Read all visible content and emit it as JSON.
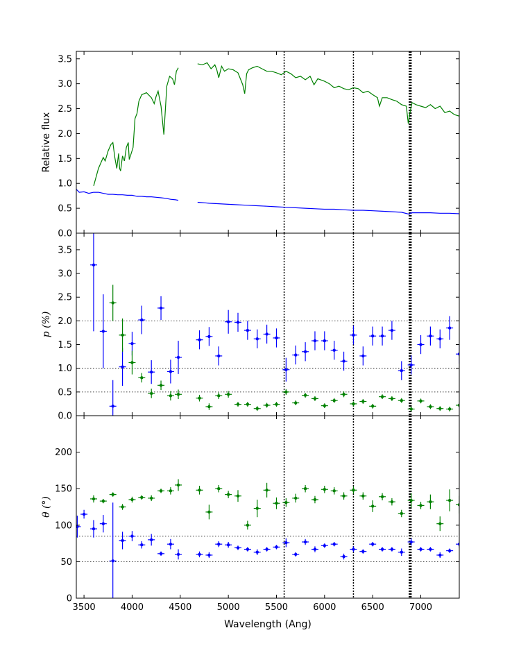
{
  "chart_data": [
    {
      "type": "line",
      "ylabel": "Relative flux",
      "ylim": [
        0,
        3.65
      ],
      "xlim": [
        3420,
        7400
      ],
      "yticks": [
        "0.0",
        "0.5",
        "1.0",
        "1.5",
        "2.0",
        "2.5",
        "3.0",
        "3.5"
      ],
      "ytick_values": [
        0,
        0.5,
        1.0,
        1.5,
        2.0,
        2.5,
        3.0,
        3.5
      ],
      "series": [
        {
          "color": "#008000",
          "x": [
            3600,
            3650,
            3700,
            3720,
            3750,
            3780,
            3800,
            3820,
            3840,
            3860,
            3870,
            3880,
            3900,
            3920,
            3940,
            3960,
            3970,
            3990,
            4010,
            4030,
            4050,
            4070,
            4100,
            4150,
            4200,
            4230,
            4250,
            4270,
            4300,
            4330,
            4360,
            4390,
            4420,
            4440,
            4460,
            4480,
            4680,
            4730,
            4780,
            4820,
            4860,
            4880,
            4900,
            4930,
            4960,
            5000,
            5050,
            5100,
            5150,
            5170,
            5190,
            5210,
            5250,
            5300,
            5350,
            5400,
            5450,
            5500,
            5550,
            5600,
            5650,
            5700,
            5750,
            5800,
            5850,
            5890,
            5930,
            6000,
            6050,
            6100,
            6150,
            6200,
            6250,
            6300,
            6350,
            6400,
            6450,
            6500,
            6550,
            6570,
            6600,
            6650,
            6700,
            6750,
            6800,
            6850,
            6870,
            6890,
            6910,
            6950,
            7000,
            7050,
            7100,
            7150,
            7200,
            7250,
            7300,
            7350,
            7400
          ],
          "y": [
            0.95,
            1.3,
            1.52,
            1.45,
            1.65,
            1.78,
            1.82,
            1.52,
            1.3,
            1.6,
            1.3,
            1.25,
            1.55,
            1.45,
            1.72,
            1.82,
            1.48,
            1.6,
            1.72,
            2.3,
            2.4,
            2.65,
            2.78,
            2.82,
            2.72,
            2.6,
            2.75,
            2.85,
            2.55,
            1.98,
            2.95,
            3.15,
            3.1,
            2.98,
            3.25,
            3.32,
            3.4,
            3.38,
            3.42,
            3.3,
            3.38,
            3.28,
            3.12,
            3.35,
            3.25,
            3.3,
            3.28,
            3.22,
            2.98,
            2.8,
            3.2,
            3.28,
            3.32,
            3.35,
            3.3,
            3.25,
            3.25,
            3.22,
            3.18,
            3.25,
            3.2,
            3.12,
            3.15,
            3.08,
            3.15,
            2.98,
            3.1,
            3.05,
            3.0,
            2.92,
            2.95,
            2.9,
            2.88,
            2.92,
            2.9,
            2.82,
            2.85,
            2.78,
            2.72,
            2.55,
            2.72,
            2.72,
            2.68,
            2.65,
            2.58,
            2.55,
            2.2,
            2.45,
            2.62,
            2.58,
            2.55,
            2.52,
            2.58,
            2.5,
            2.55,
            2.42,
            2.45,
            2.38,
            2.35
          ]
        },
        {
          "color": "#0000ff",
          "x": [
            3420,
            3450,
            3500,
            3550,
            3600,
            3650,
            3700,
            3750,
            3800,
            3850,
            3900,
            3950,
            4000,
            4050,
            4100,
            4150,
            4200,
            4250,
            4300,
            4350,
            4400,
            4450,
            4480,
            4680,
            4750,
            4800,
            4900,
            5000,
            5100,
            5200,
            5300,
            5400,
            5500,
            5600,
            5700,
            5800,
            5900,
            6000,
            6100,
            6200,
            6300,
            6400,
            6500,
            6600,
            6700,
            6800,
            6880,
            6900,
            6950,
            7000,
            7100,
            7200,
            7300,
            7400
          ],
          "y": [
            0.88,
            0.82,
            0.83,
            0.8,
            0.82,
            0.82,
            0.8,
            0.78,
            0.78,
            0.77,
            0.77,
            0.76,
            0.76,
            0.74,
            0.74,
            0.73,
            0.73,
            0.72,
            0.71,
            0.7,
            0.68,
            0.67,
            0.66,
            0.62,
            0.61,
            0.6,
            0.59,
            0.58,
            0.57,
            0.56,
            0.55,
            0.54,
            0.53,
            0.52,
            0.51,
            0.5,
            0.49,
            0.48,
            0.48,
            0.47,
            0.46,
            0.46,
            0.45,
            0.44,
            0.43,
            0.42,
            0.38,
            0.41,
            0.41,
            0.41,
            0.41,
            0.4,
            0.4,
            0.39
          ]
        }
      ]
    },
    {
      "type": "scatter",
      "ylabel": "p (%)",
      "ylim": [
        0,
        3.85
      ],
      "xlim": [
        3420,
        7400
      ],
      "yticks": [
        "0.0",
        "0.5",
        "1.0",
        "1.5",
        "2.0",
        "2.5",
        "3.0",
        "3.5"
      ],
      "ytick_values": [
        0,
        0.5,
        1.0,
        1.5,
        2.0,
        2.5,
        3.0,
        3.5
      ],
      "hlines": [
        0.5,
        1.0,
        2.0
      ],
      "series": [
        {
          "color": "#0000ff",
          "x": [
            3600,
            3700,
            3800,
            3900,
            4000,
            4100,
            4200,
            4300,
            4400,
            4480,
            4700,
            4800,
            4900,
            5000,
            5100,
            5200,
            5300,
            5400,
            5500,
            5600,
            5700,
            5800,
            5900,
            6000,
            6100,
            6200,
            6300,
            6400,
            6500,
            6600,
            6700,
            6800,
            6900,
            7000,
            7100,
            7200,
            7300,
            7400
          ],
          "y": [
            3.18,
            1.78,
            0.2,
            1.03,
            1.52,
            2.02,
            0.92,
            2.27,
            0.93,
            1.23,
            1.6,
            1.67,
            1.26,
            1.98,
            1.97,
            1.8,
            1.62,
            1.72,
            1.64,
            0.97,
            1.28,
            1.35,
            1.58,
            1.58,
            1.38,
            1.15,
            1.7,
            1.26,
            1.68,
            1.68,
            1.8,
            0.95,
            1.07,
            1.5,
            1.68,
            1.62,
            1.85,
            1.3
          ],
          "yerr": [
            1.4,
            0.78,
            0.55,
            0.4,
            0.25,
            0.3,
            0.25,
            0.25,
            0.25,
            0.35,
            0.2,
            0.2,
            0.2,
            0.25,
            0.2,
            0.2,
            0.2,
            0.2,
            0.2,
            0.25,
            0.2,
            0.2,
            0.2,
            0.2,
            0.2,
            0.2,
            0.2,
            0.2,
            0.2,
            0.2,
            0.2,
            0.2,
            0.2,
            0.2,
            0.2,
            0.2,
            0.25,
            0.2
          ]
        },
        {
          "color": "#008000",
          "x": [
            3800,
            3900,
            4000,
            4100,
            4200,
            4300,
            4400,
            4480,
            4700,
            4800,
            4900,
            5000,
            5100,
            5200,
            5300,
            5400,
            5500,
            5600,
            5700,
            5800,
            5900,
            6000,
            6100,
            6200,
            6300,
            6400,
            6500,
            6600,
            6700,
            6800,
            6900,
            7000,
            7100,
            7200,
            7300,
            7400
          ],
          "y": [
            2.38,
            1.7,
            1.12,
            0.8,
            0.47,
            0.64,
            0.42,
            0.45,
            0.37,
            0.19,
            0.42,
            0.45,
            0.24,
            0.24,
            0.15,
            0.22,
            0.24,
            0.5,
            0.27,
            0.43,
            0.36,
            0.21,
            0.32,
            0.45,
            0.25,
            0.3,
            0.2,
            0.4,
            0.36,
            0.32,
            0.14,
            0.31,
            0.19,
            0.15,
            0.14,
            0.22
          ],
          "yerr": [
            0.38,
            0.35,
            0.25,
            0.1,
            0.1,
            0.1,
            0.1,
            0.1,
            0.07,
            0.07,
            0.07,
            0.07,
            0.05,
            0.05,
            0.05,
            0.05,
            0.05,
            0.06,
            0.05,
            0.05,
            0.05,
            0.05,
            0.05,
            0.06,
            0.05,
            0.05,
            0.05,
            0.05,
            0.05,
            0.05,
            0.05,
            0.05,
            0.05,
            0.05,
            0.05,
            0.05
          ]
        }
      ]
    },
    {
      "type": "scatter",
      "ylabel": "θ (°)",
      "ylim": [
        0,
        250
      ],
      "xlim": [
        3420,
        7400
      ],
      "xlabel": "Wavelength (Ang)",
      "xticks": [
        "3500",
        "4000",
        "4500",
        "5000",
        "5500",
        "6000",
        "6500",
        "7000"
      ],
      "xtick_values": [
        3500,
        4000,
        4500,
        5000,
        5500,
        6000,
        6500,
        7000
      ],
      "yticks": [
        "0",
        "50",
        "100",
        "150",
        "200"
      ],
      "ytick_values": [
        0,
        50,
        100,
        150,
        200
      ],
      "hlines": [
        50,
        85
      ],
      "series": [
        {
          "color": "#0000ff",
          "x": [
            3430,
            3500,
            3600,
            3700,
            3800,
            3900,
            4000,
            4100,
            4200,
            4300,
            4400,
            4480,
            4700,
            4800,
            4900,
            5000,
            5100,
            5200,
            5300,
            5400,
            5500,
            5600,
            5700,
            5800,
            5900,
            6000,
            6100,
            6200,
            6300,
            6400,
            6500,
            6600,
            6700,
            6800,
            6900,
            7000,
            7100,
            7200,
            7300,
            7400
          ],
          "y": [
            98,
            115,
            95,
            102,
            51,
            79,
            85,
            73,
            80,
            61,
            74,
            60,
            60,
            59,
            74,
            73,
            69,
            67,
            63,
            67,
            70,
            76,
            60,
            77,
            67,
            72,
            74,
            57,
            67,
            64,
            74,
            67,
            67,
            63,
            77,
            67,
            67,
            59,
            65,
            74
          ],
          "yerr": [
            15,
            6,
            12,
            12,
            80,
            12,
            7,
            5,
            8,
            3,
            7,
            7,
            4,
            4,
            4,
            4,
            3,
            3,
            4,
            3,
            3,
            6,
            3,
            4,
            4,
            3,
            3,
            4,
            4,
            3,
            3,
            3,
            3,
            5,
            5,
            3,
            3,
            4,
            3,
            5
          ]
        },
        {
          "color": "#008000",
          "x": [
            3600,
            3700,
            3800,
            3900,
            4000,
            4100,
            4200,
            4300,
            4400,
            4480,
            4700,
            4800,
            4900,
            5000,
            5100,
            5200,
            5300,
            5400,
            5500,
            5600,
            5700,
            5800,
            5900,
            6000,
            6100,
            6200,
            6300,
            6400,
            6500,
            6600,
            6700,
            6800,
            6900,
            7000,
            7100,
            7200,
            7300,
            7400
          ],
          "y": [
            136,
            133,
            142,
            125,
            135,
            138,
            137,
            147,
            147,
            155,
            148,
            118,
            150,
            142,
            140,
            100,
            123,
            148,
            130,
            131,
            137,
            150,
            135,
            149,
            147,
            140,
            148,
            140,
            126,
            139,
            132,
            116,
            134,
            127,
            132,
            102,
            134,
            128
          ],
          "yerr": [
            5,
            3,
            3,
            4,
            4,
            3,
            4,
            3,
            5,
            8,
            6,
            10,
            5,
            5,
            8,
            6,
            12,
            10,
            8,
            6,
            6,
            5,
            5,
            5,
            5,
            5,
            5,
            5,
            8,
            5,
            5,
            5,
            10,
            5,
            10,
            10,
            15,
            12
          ]
        }
      ]
    }
  ],
  "vlines": [
    5580,
    6300,
    6880,
    6890,
    6900
  ]
}
